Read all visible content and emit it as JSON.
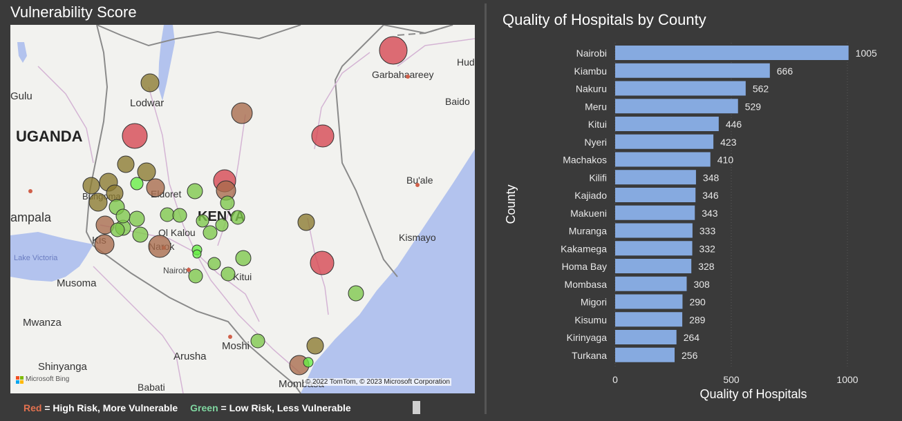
{
  "left": {
    "title": "Vulnerability Score",
    "map": {
      "place_labels": [
        {
          "text": "UGANDA",
          "kind": "country"
        },
        {
          "text": "KENYA",
          "kind": "country"
        },
        {
          "text": "Gulu",
          "kind": "city"
        },
        {
          "text": "Lodwar",
          "kind": "city"
        },
        {
          "text": "Garbahaareey",
          "kind": "city"
        },
        {
          "text": "Hud",
          "kind": "city"
        },
        {
          "text": "Baido",
          "kind": "city"
        },
        {
          "text": "Bu'ale",
          "kind": "city"
        },
        {
          "text": "Kismayo",
          "kind": "city"
        },
        {
          "text": "ampala",
          "kind": "city-large"
        },
        {
          "text": "Lake Victoria",
          "kind": "water"
        },
        {
          "text": "Musoma",
          "kind": "city"
        },
        {
          "text": "Mwanza",
          "kind": "city"
        },
        {
          "text": "Shinyanga",
          "kind": "city"
        },
        {
          "text": "Babati",
          "kind": "city"
        },
        {
          "text": "Arusha",
          "kind": "city"
        },
        {
          "text": "Moshi",
          "kind": "city"
        },
        {
          "text": "Mombasa",
          "kind": "city"
        },
        {
          "text": "Nairobi",
          "kind": "city-small"
        },
        {
          "text": "Kitui",
          "kind": "city"
        },
        {
          "text": "Narok",
          "kind": "city"
        },
        {
          "text": "Ol Kalou",
          "kind": "city"
        },
        {
          "text": "Eldoret",
          "kind": "city"
        },
        {
          "text": "Bungoma",
          "kind": "city"
        },
        {
          "text": "Kis",
          "kind": "city"
        }
      ],
      "attribution": "© 2022 TomTom, © 2023 Microsoft Corporation",
      "brand": "Microsoft Bing",
      "brand_icon": "windows-logo-icon",
      "marker_colors": {
        "high": "#d6454f",
        "brown": "#a86a4a",
        "olive": "#8a7a2e",
        "green": "#7ec84a",
        "bright": "#66ee44"
      }
    },
    "legend": {
      "red_word": "Red",
      "red_rest": " = High Risk, More Vulnerable",
      "green_word": "Green",
      "green_rest": " = Low Risk, Less Vulnerable"
    }
  },
  "right": {
    "title": "Quality of Hospitals by County",
    "chart_data": {
      "type": "bar",
      "orientation": "horizontal",
      "title": "Quality of Hospitals by County",
      "xlabel": "Quality of Hospitals",
      "ylabel": "County",
      "xlim": [
        0,
        1000
      ],
      "xticks": [
        0,
        500,
        1000
      ],
      "bar_color": "#86aae0",
      "categories": [
        "Nairobi",
        "Kiambu",
        "Nakuru",
        "Meru",
        "Kitui",
        "Nyeri",
        "Machakos",
        "Kilifi",
        "Kajiado",
        "Makueni",
        "Muranga",
        "Kakamega",
        "Homa Bay",
        "Mombasa",
        "Migori",
        "Kisumu",
        "Kirinyaga",
        "Turkana"
      ],
      "values": [
        1005,
        666,
        562,
        529,
        446,
        423,
        410,
        348,
        346,
        343,
        333,
        332,
        328,
        308,
        290,
        289,
        264,
        256
      ]
    }
  }
}
